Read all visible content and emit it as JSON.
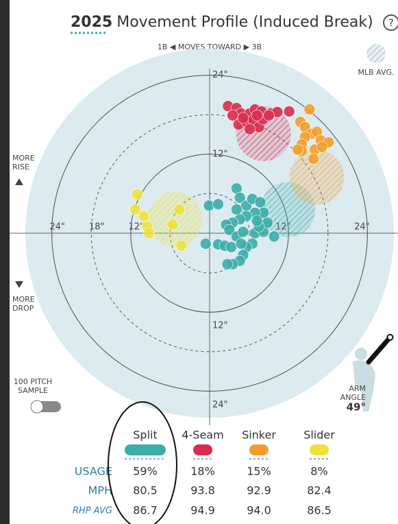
{
  "chart_data": {
    "type": "scatter",
    "title_year": "2025",
    "title": "Movement Profile (Induced Break)",
    "help_icon": "?",
    "direction_label": "1B ◀  MOVES TOWARD  ▶ 3B",
    "avg_legend": "MLB AVG.",
    "rise_label": [
      "MORE",
      "RISE"
    ],
    "drop_label": [
      "MORE",
      "DROP"
    ],
    "sample_label": [
      "100 PITCH",
      "SAMPLE"
    ],
    "arm_angle_title": [
      "ARM",
      "ANGLE"
    ],
    "arm_angle": 49,
    "arm_angle_label": "49°",
    "xlim": [
      -28,
      28
    ],
    "ylim": [
      -28,
      28
    ],
    "xticks": [
      {
        "value": -24,
        "label": "24\""
      },
      {
        "value": -18,
        "label": "18\""
      },
      {
        "value": -12,
        "label": "12\""
      },
      {
        "value": 12,
        "label": "12\""
      },
      {
        "value": 24,
        "label": "24\""
      }
    ],
    "yticks": [
      {
        "value": 24,
        "label": "24\""
      },
      {
        "value": 12,
        "label": "12\""
      },
      {
        "value": -12,
        "label": "12\""
      },
      {
        "value": -24,
        "label": "24\""
      }
    ],
    "series": [
      {
        "name": "Split",
        "color": "#3aada8",
        "mlb_avg_x": 11.9,
        "mlb_avg_y": 3.6,
        "x": [
          -0.1,
          1.3,
          4.1,
          4.6,
          5.6,
          6.5,
          7.7,
          8.2,
          6.9,
          5.6,
          4.6,
          3.5,
          2.5,
          3.0,
          4.1,
          5.1,
          6.9,
          8.2,
          9.8,
          8.8,
          7.5,
          6.5,
          5.6,
          5.1,
          4.6,
          3.5,
          2.7,
          1.3,
          -0.6,
          2.3,
          3.3,
          4.8,
          4.1,
          7.2
        ],
        "y": [
          4.2,
          4.4,
          6.8,
          5.4,
          4.2,
          5.2,
          4.7,
          3.1,
          3.1,
          2.6,
          2.1,
          1.6,
          1.3,
          0.5,
          -0.5,
          0.2,
          0,
          0.2,
          -0.5,
          1.6,
          1.0,
          -1.6,
          -2.1,
          -3.3,
          -4.2,
          -4.7,
          -4.7,
          -1.7,
          -1.6,
          -1.9,
          -2.1,
          -1.6,
          3.6,
          1.9
        ]
      },
      {
        "name": "4-Seam",
        "color": "#d92c4f",
        "mlb_avg_x": 8.2,
        "mlb_avg_y": 15.1,
        "x": [
          2.8,
          4.1,
          4.8,
          3.5,
          6.1,
          6.9,
          7.9,
          9.3,
          10.3,
          12.1,
          4.4,
          5.6,
          6.7,
          7.5,
          6.1,
          5.1,
          8.1,
          9.0,
          7.2
        ],
        "y": [
          19.3,
          19.0,
          18.2,
          17.9,
          18.2,
          18.8,
          18.5,
          18.2,
          18.4,
          18.5,
          16.5,
          16.9,
          17.2,
          16.1,
          15.8,
          17.5,
          17.3,
          17.9,
          17.9
        ]
      },
      {
        "name": "Sinker",
        "color": "#f59d2a",
        "mlb_avg_x": 16.3,
        "mlb_avg_y": 8.5,
        "x": [
          15.2,
          13.8,
          14.5,
          15.5,
          14.5,
          16.3,
          16.9,
          18.1,
          14.0,
          16.0,
          14.0,
          13.4,
          15.8,
          17.1
        ],
        "y": [
          18.8,
          16.9,
          16.1,
          15.1,
          14.6,
          15.4,
          14.1,
          13.8,
          13.5,
          12.7,
          12.5,
          12.7,
          11.3,
          13.1
        ]
      },
      {
        "name": "Slider",
        "color": "#eee23a",
        "mlb_avg_x": -5.3,
        "mlb_avg_y": 2.1,
        "x": [
          -11.0,
          -11.3,
          -10.0,
          -9.5,
          -9.2,
          -5.6,
          -4.6,
          -4.3
        ],
        "y": [
          5.9,
          3.6,
          2.6,
          1.0,
          0,
          1.3,
          3.6,
          -1.9
        ]
      }
    ]
  },
  "table": {
    "rows": [
      {
        "label": "USAGE",
        "values": [
          "59%",
          "18%",
          "15%",
          "8%"
        ]
      },
      {
        "label": "MPH",
        "values": [
          "80.5",
          "93.8",
          "92.9",
          "82.4"
        ]
      },
      {
        "label": "RHP AVG",
        "values": [
          "86.7",
          "94.9",
          "94.0",
          "86.5"
        ]
      }
    ]
  }
}
